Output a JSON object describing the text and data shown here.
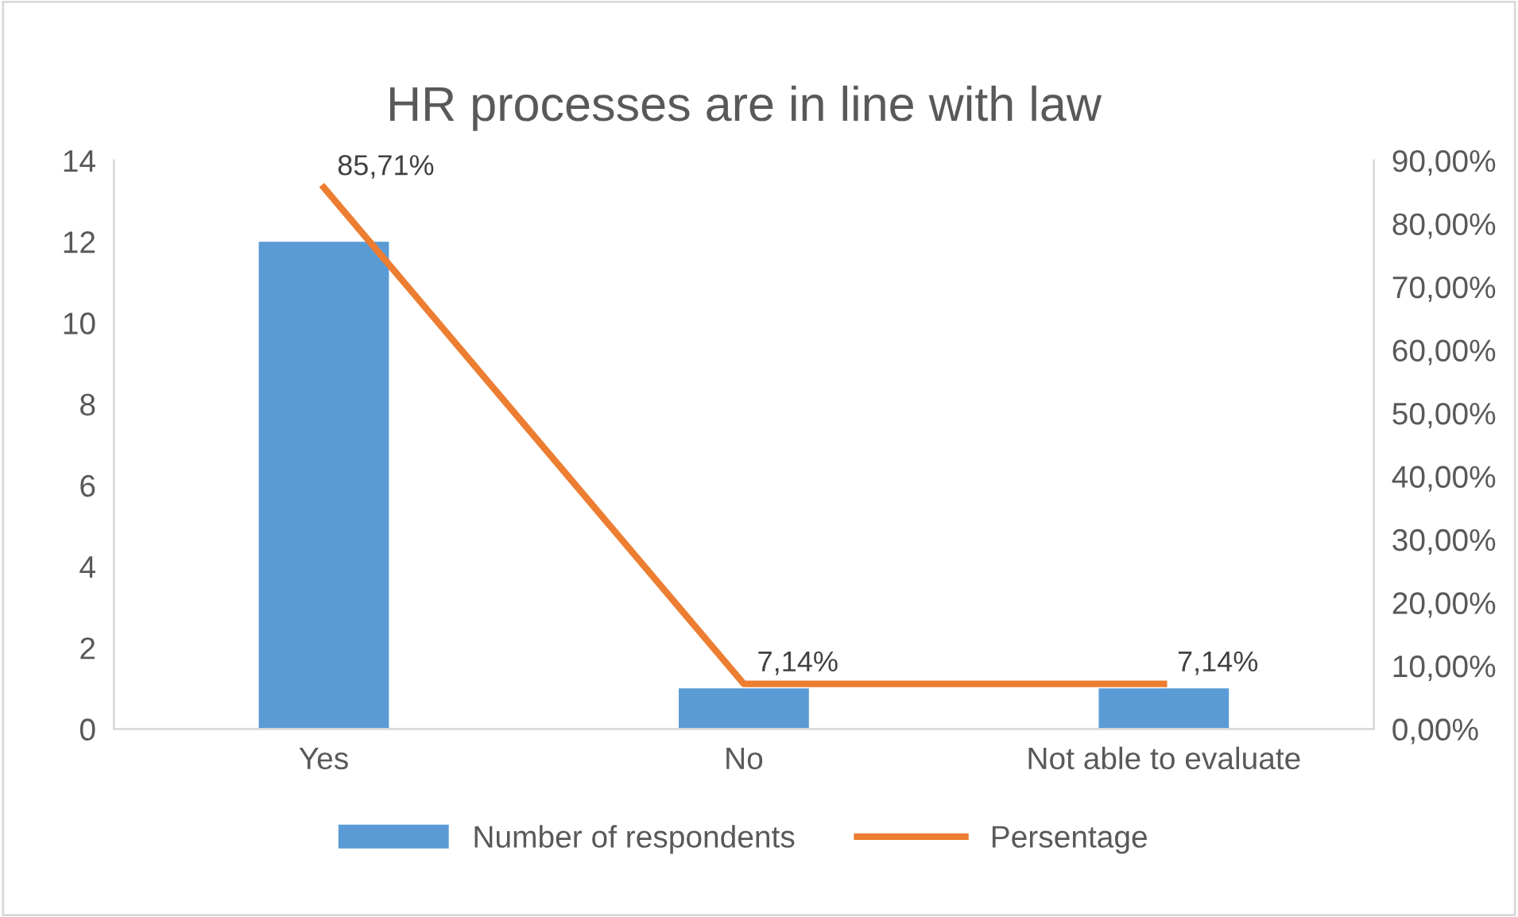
{
  "chart_data": {
    "type": "bar",
    "title": "HR processes are in line with law",
    "categories": [
      "Yes",
      "No",
      "Not able to evaluate"
    ],
    "series": [
      {
        "name": "Number of respondents",
        "color": "#5b9bd5",
        "values": [
          12,
          1,
          1
        ]
      },
      {
        "name": "Persentage",
        "type": "line",
        "axis": "y2",
        "color": "#ed7d31",
        "values": [
          85.71,
          7.14,
          7.14
        ],
        "value_labels": [
          "85,71%",
          "7,14%",
          "7,14%"
        ]
      }
    ],
    "ylim": [
      0,
      14
    ],
    "yticks": [
      0,
      2,
      4,
      6,
      8,
      10,
      12,
      14
    ],
    "y2lim": [
      0,
      90
    ],
    "y2ticks": [
      {
        "value": 0,
        "label": "0,00%"
      },
      {
        "value": 10,
        "label": "10,00%"
      },
      {
        "value": 20,
        "label": "20,00%"
      },
      {
        "value": 30,
        "label": "30,00%"
      },
      {
        "value": 40,
        "label": "40,00%"
      },
      {
        "value": 50,
        "label": "50,00%"
      },
      {
        "value": 60,
        "label": "60,00%"
      },
      {
        "value": 70,
        "label": "70,00%"
      },
      {
        "value": 80,
        "label": "80,00%"
      },
      {
        "value": 90,
        "label": "90,00%"
      }
    ],
    "legend": "bottom",
    "grid": false,
    "marker": "none",
    "line_style": "solid"
  }
}
